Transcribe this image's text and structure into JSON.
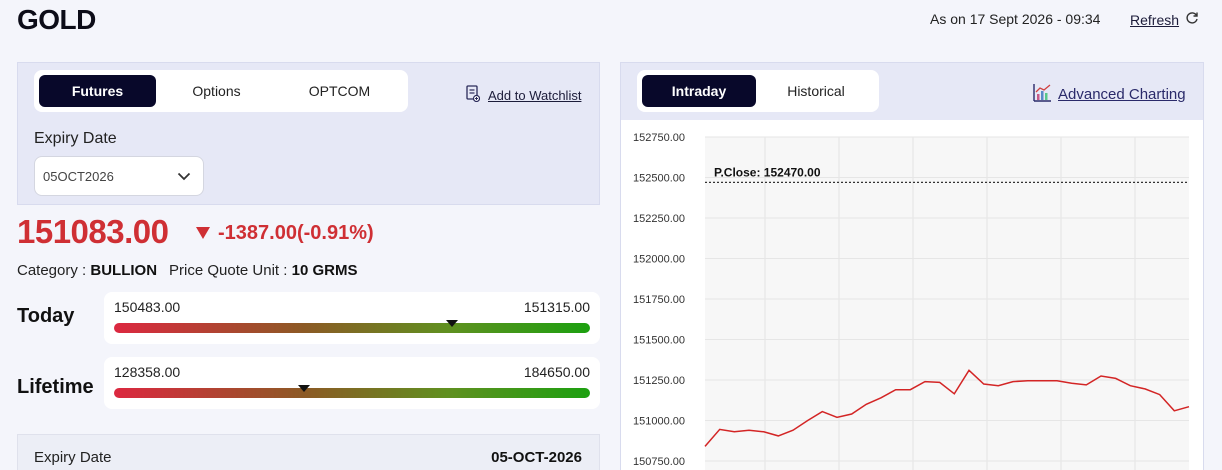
{
  "header": {
    "title": "GOLD",
    "as_of": "As on 17 Sept 2026 - 09:34",
    "refresh_label": "Refresh"
  },
  "left": {
    "tabs": [
      {
        "label": "Futures",
        "active": true
      },
      {
        "label": "Options",
        "active": false
      },
      {
        "label": "OPTCOM",
        "active": false
      }
    ],
    "watchlist_label": "Add to Watchlist",
    "expiry_label": "Expiry Date",
    "expiry_value": "05OCT2026",
    "price": "151083.00",
    "change": "-1387.00(-0.91%)",
    "category_label": "Category :",
    "category_value": "BULLION",
    "quote_label": "Price Quote Unit :",
    "quote_value": "10 GRMS",
    "today": {
      "label": "Today",
      "low": "150483.00",
      "high": "151315.00",
      "marker_fraction": 0.71
    },
    "lifetime": {
      "label": "Lifetime",
      "low": "128358.00",
      "high": "184650.00",
      "marker_fraction": 0.4
    },
    "bottom": {
      "label": "Expiry Date",
      "value": "05-OCT-2026"
    }
  },
  "right": {
    "tabs": [
      {
        "label": "Intraday",
        "active": true
      },
      {
        "label": "Historical",
        "active": false
      }
    ],
    "advanced_label": "Advanced Charting"
  },
  "colors": {
    "accent_dark": "#08082a",
    "negative": "#cf2f34",
    "series": "#d32525"
  },
  "chart_data": {
    "type": "line",
    "y_ticks": [
      "152750.00",
      "152500.00",
      "152250.00",
      "152000.00",
      "151750.00",
      "151500.00",
      "151250.00",
      "151000.00",
      "150750.00"
    ],
    "ylim": [
      150750,
      152750
    ],
    "reference_line": {
      "label": "P.Close: 152470.00",
      "value": 152470
    },
    "grid": true,
    "series": [
      {
        "values": [
          150840,
          150945,
          150930,
          150940,
          150930,
          150905,
          150940,
          151000,
          151055,
          151020,
          151040,
          151100,
          151140,
          151190,
          151190,
          151240,
          151235,
          151165,
          151310,
          151225,
          151215,
          151240,
          151245,
          151245,
          151245,
          151230,
          151220,
          151275,
          151260,
          151215,
          151195,
          151160,
          151060,
          151085
        ]
      }
    ]
  }
}
